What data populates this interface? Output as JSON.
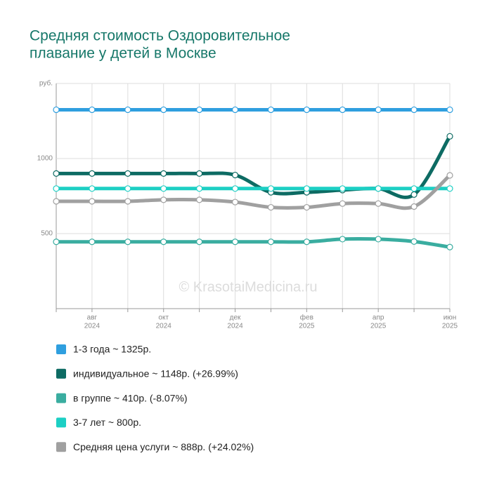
{
  "chart_data": {
    "type": "line",
    "title": [
      "Средняя стоимость Оздоровительное",
      "плавание у детей в Москве"
    ],
    "y_label": "руб.",
    "watermark": "© KrasotaiMedicina.ru",
    "categories": [
      null,
      "авг",
      null,
      "окт",
      null,
      "дек",
      null,
      "фев",
      null,
      "апр",
      null,
      "июн"
    ],
    "category_years": [
      null,
      "2024",
      null,
      "2024",
      null,
      "2024",
      null,
      "2025",
      null,
      "2025",
      null,
      "2025"
    ],
    "ylim": [
      0,
      1500
    ],
    "yticks": [
      500,
      1000
    ],
    "grid": true,
    "series": [
      {
        "name": "1-3 года ~ 1325р.",
        "color": "#2f9fdf",
        "values": [
          1325,
          1325,
          1325,
          1325,
          1325,
          1325,
          1325,
          1325,
          1325,
          1325,
          1325,
          1325
        ]
      },
      {
        "name": "индивидуальное ~ 1148р. (+26.99%)",
        "color": "#0d6b63",
        "values": [
          900,
          900,
          900,
          900,
          900,
          890,
          775,
          775,
          790,
          800,
          760,
          1148
        ]
      },
      {
        "name": "в группе ~ 410р. (-8.07%)",
        "color": "#3aada0",
        "values": [
          445,
          445,
          445,
          445,
          445,
          445,
          445,
          445,
          463,
          463,
          447,
          410
        ]
      },
      {
        "name": "3-7 лет ~ 800р.",
        "color": "#1ccfc4",
        "values": [
          800,
          800,
          800,
          800,
          800,
          800,
          800,
          800,
          800,
          800,
          800,
          800
        ]
      },
      {
        "name": "Средняя цена услуги ~ 888р. (+24.02%)",
        "color": "#a0a0a0",
        "values": [
          715,
          715,
          715,
          725,
          725,
          710,
          675,
          675,
          700,
          700,
          680,
          888
        ]
      }
    ]
  }
}
